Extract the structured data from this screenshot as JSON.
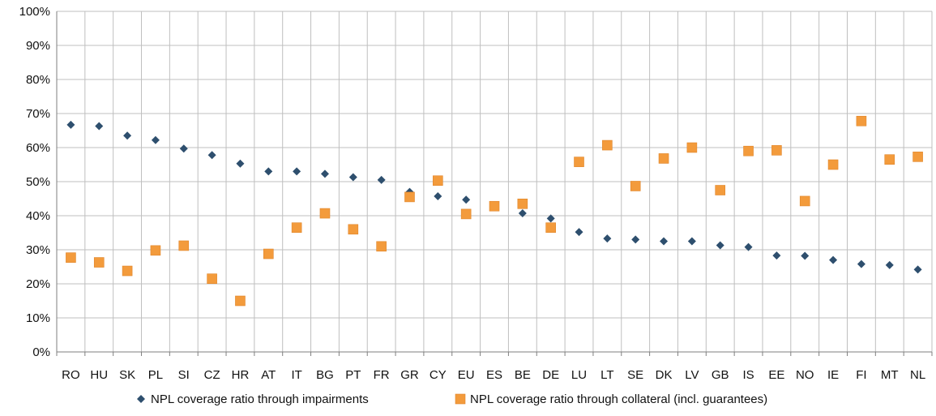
{
  "chart_data": {
    "type": "scatter",
    "categories": [
      "RO",
      "HU",
      "SK",
      "PL",
      "SI",
      "CZ",
      "HR",
      "AT",
      "IT",
      "BG",
      "PT",
      "FR",
      "GR",
      "CY",
      "EU",
      "ES",
      "BE",
      "DE",
      "LU",
      "LT",
      "SE",
      "DK",
      "LV",
      "GB",
      "IS",
      "EE",
      "NO",
      "IE",
      "FI",
      "MT",
      "NL"
    ],
    "series": [
      {
        "name": "NPL coverage ratio through impairments",
        "marker": "diamond",
        "color": "#2e4f6e",
        "values": [
          66.7,
          66.3,
          63.5,
          62.2,
          59.7,
          57.8,
          55.3,
          53.0,
          53.0,
          52.3,
          51.3,
          50.5,
          47.0,
          45.7,
          44.7,
          42.5,
          40.7,
          39.2,
          35.2,
          33.3,
          33.0,
          32.5,
          32.5,
          31.3,
          30.8,
          28.3,
          28.2,
          27.0,
          25.8,
          25.5,
          24.2
        ]
      },
      {
        "name": "NPL coverage ratio through collateral (incl. guarantees)",
        "marker": "square",
        "color": "#f39b3c",
        "values": [
          27.7,
          26.3,
          23.8,
          29.8,
          31.2,
          21.5,
          15.0,
          28.8,
          36.5,
          40.7,
          36.0,
          31.0,
          45.5,
          50.3,
          40.5,
          42.8,
          43.5,
          36.5,
          55.8,
          60.7,
          48.7,
          56.8,
          60.0,
          47.5,
          59.0,
          59.2,
          44.3,
          55.0,
          67.8,
          56.5,
          57.3
        ]
      }
    ],
    "y_ticks": [
      "0%",
      "10%",
      "20%",
      "30%",
      "40%",
      "50%",
      "60%",
      "70%",
      "80%",
      "90%",
      "100%"
    ],
    "ylim": [
      0,
      100
    ],
    "grid": true,
    "legend_position": "bottom",
    "axis_color": "#7f7f7f",
    "grid_color": "#bfbfbf"
  }
}
